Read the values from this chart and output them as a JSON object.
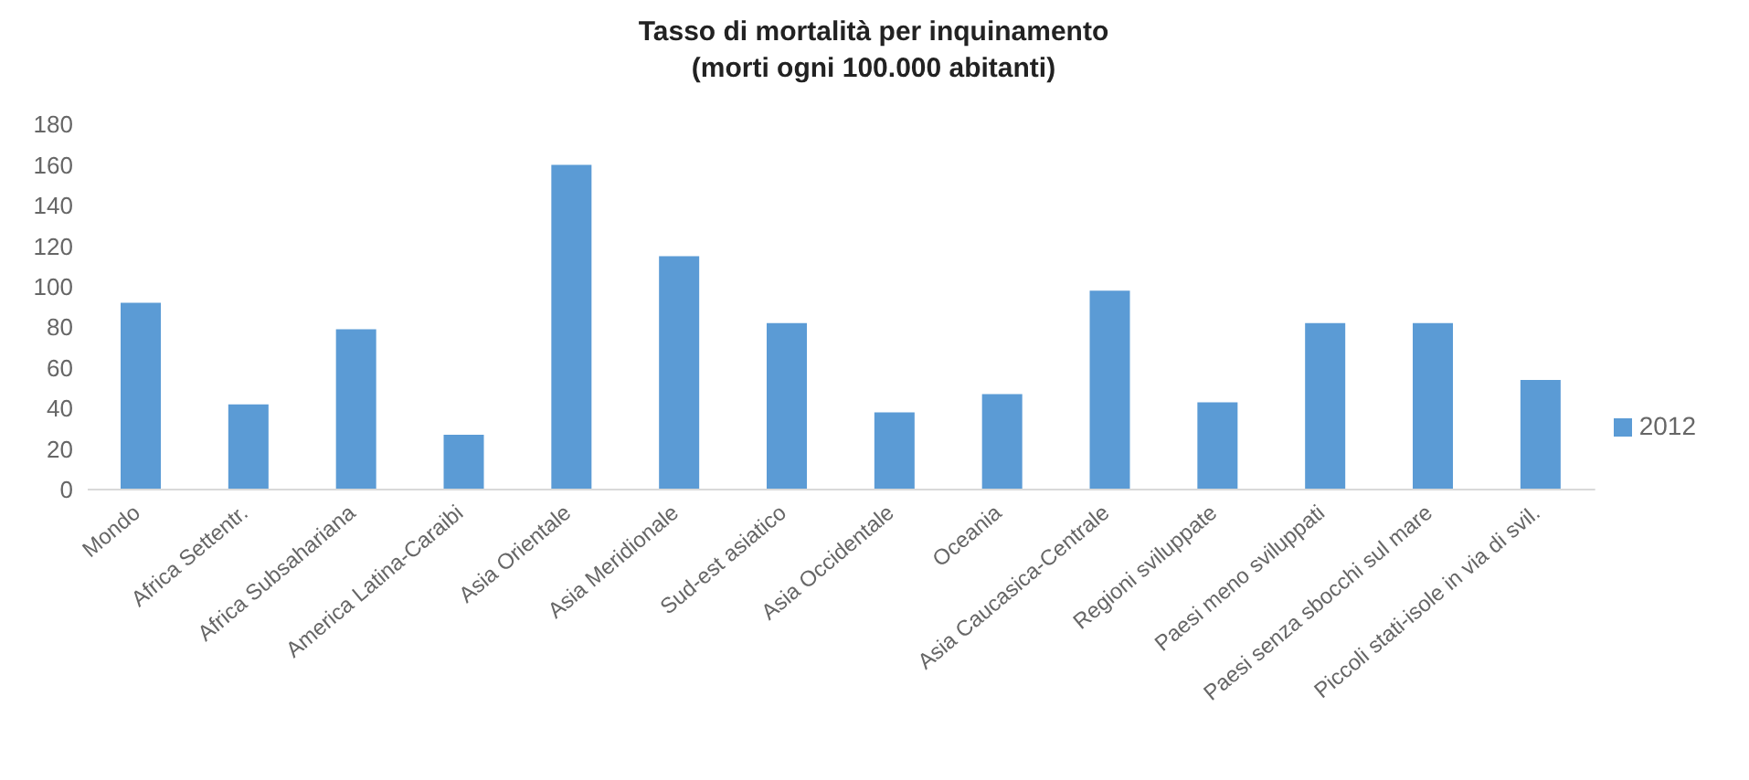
{
  "chart_data": {
    "type": "bar",
    "title": "Tasso di mortalità per inquinamento\n(morti ogni 100.000 abitanti)",
    "categories": [
      "Mondo",
      "Africa Settentr.",
      "Africa Subsahariana",
      "America Latina-Caraibi",
      "Asia Orientale",
      "Asia Meridionale",
      "Sud-est asiatico",
      "Asia Occidentale",
      "Oceania",
      "Asia Caucasica-Centrale",
      "Regioni sviluppate",
      "Paesi meno sviluppati",
      "Paesi senza sbocchi sul mare",
      "Piccoli stati-isole in via di svil."
    ],
    "series": [
      {
        "name": "2012",
        "color": "#5b9bd5",
        "values": [
          92,
          42,
          79,
          27,
          160,
          115,
          82,
          38,
          47,
          98,
          43,
          82,
          82,
          54
        ]
      }
    ],
    "ylim": [
      0,
      180
    ],
    "yticks": [
      0,
      20,
      40,
      60,
      80,
      100,
      120,
      140,
      160,
      180
    ],
    "grid": false,
    "legend": "right"
  }
}
